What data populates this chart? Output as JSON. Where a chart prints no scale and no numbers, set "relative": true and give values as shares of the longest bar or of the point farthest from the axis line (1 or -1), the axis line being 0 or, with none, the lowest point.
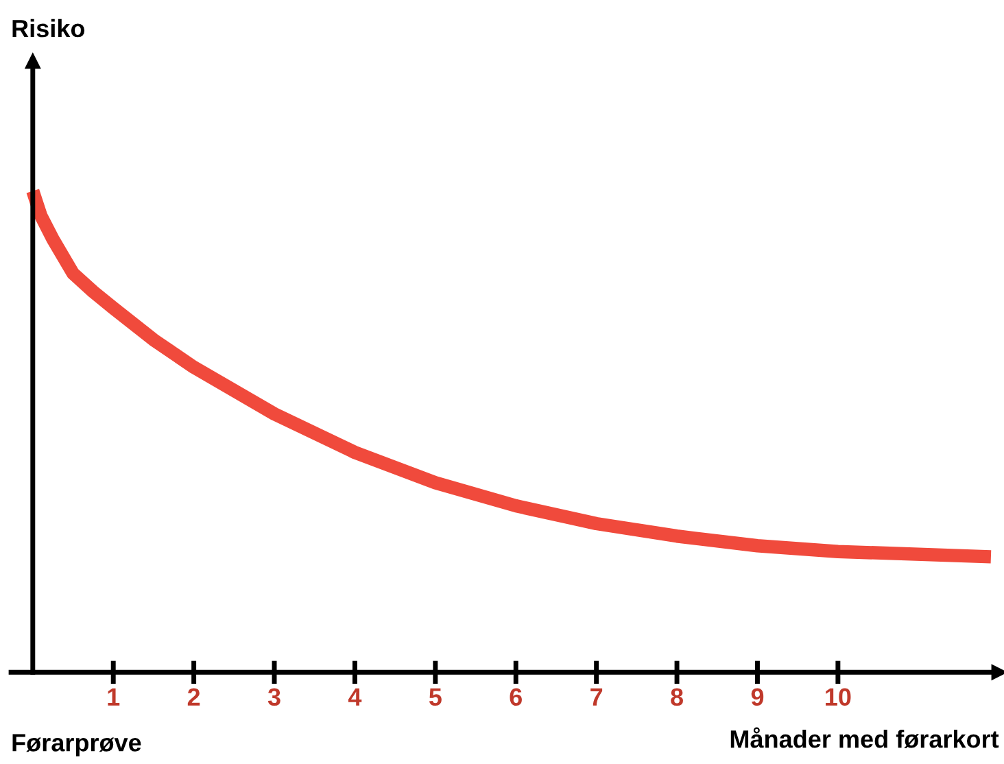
{
  "chart_data": {
    "type": "line",
    "relative": true,
    "xlabel": "Månader med førarkort",
    "annotations": [
      "Risiko",
      "Førarprøve"
    ],
    "xlim": [
      -0.27,
      12
    ],
    "xticks": [
      1,
      2,
      3,
      4,
      5,
      6,
      7,
      8,
      9,
      10
    ],
    "series": [
      {
        "color": "#f04a3c",
        "x": [
          0,
          0.1,
          0.25,
          0.5,
          0.75,
          1,
          1.5,
          2,
          3,
          4,
          5,
          6,
          7,
          8,
          9,
          10,
          11.9
        ],
        "values": [
          1.0,
          0.949,
          0.9,
          0.829,
          0.791,
          0.757,
          0.691,
          0.634,
          0.537,
          0.457,
          0.394,
          0.346,
          0.309,
          0.283,
          0.263,
          0.251,
          0.24
        ]
      }
    ]
  }
}
